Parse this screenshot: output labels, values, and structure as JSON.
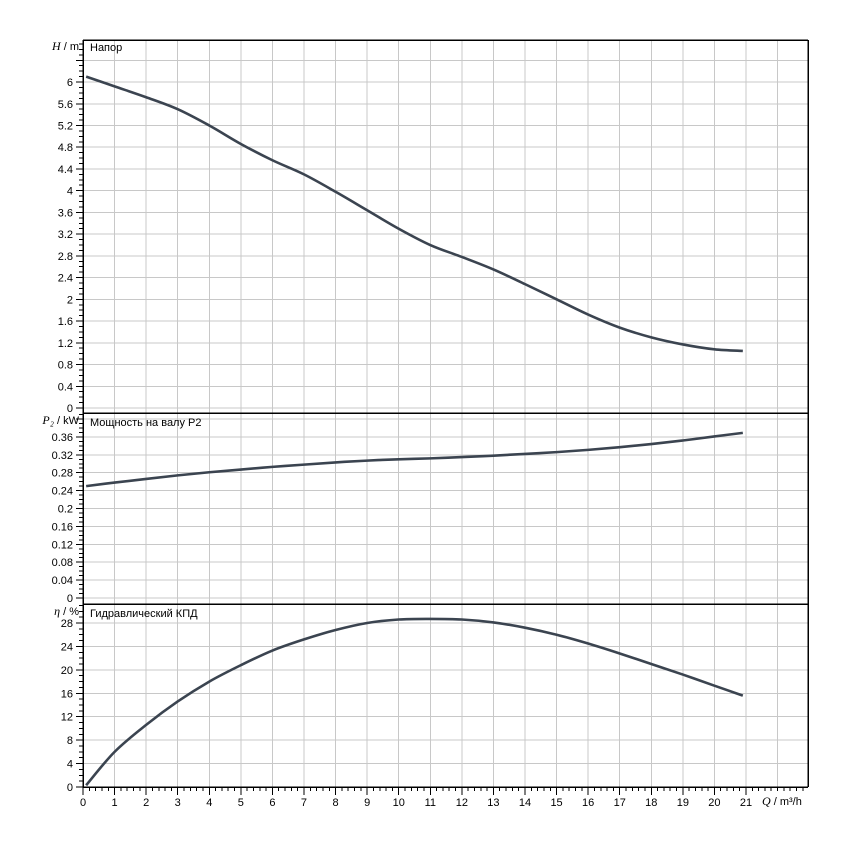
{
  "page": {
    "background": "#ffffff"
  },
  "colors": {
    "curve": "#3b4450",
    "grid": "#c8c8c8",
    "axis": "#000000",
    "text": "#000000"
  },
  "axis_labels": {
    "head": {
      "symbol": "H",
      "unit": " / m"
    },
    "power": {
      "symbol": "P₂",
      "unit": " / kW"
    },
    "eff": {
      "symbol": "η",
      "unit": " / %"
    },
    "flow": {
      "symbol": "Q",
      "unit": " / m³/h"
    }
  },
  "x_axis": {
    "tick_labels": [
      "0",
      "1",
      "2",
      "3",
      "4",
      "5",
      "6",
      "7",
      "8",
      "9",
      "10",
      "11",
      "12",
      "13",
      "14",
      "15",
      "16",
      "17",
      "18",
      "19",
      "20",
      "21"
    ],
    "major_step": 1,
    "minor_step": 0.2,
    "label": "Q / m³/h",
    "xlim": [
      0,
      22.96
    ]
  },
  "chart_data": [
    {
      "type": "line",
      "title": "Напор",
      "ylabel": "H / m",
      "xlabel": "Q / m³/h",
      "grid": true,
      "legend": "none",
      "xlim": [
        0,
        22.96
      ],
      "ylim": [
        0,
        6.77
      ],
      "y_major_step": 0.4,
      "y_minor_step": 0.1,
      "y_tick_labels": [
        "0",
        "0.4",
        "0.8",
        "1.2",
        "1.6",
        "2",
        "2.4",
        "2.8",
        "3.2",
        "3.6",
        "4",
        "4.4",
        "4.8",
        "5.2",
        "5.6",
        "6"
      ],
      "x": [
        0.1,
        1,
        2,
        3,
        4,
        5,
        6,
        7,
        8,
        9,
        10,
        11,
        12,
        13,
        14,
        15,
        16,
        17,
        18,
        19,
        20,
        20.9
      ],
      "y": [
        6.1,
        5.92,
        5.72,
        5.5,
        5.2,
        4.86,
        4.56,
        4.3,
        3.98,
        3.64,
        3.3,
        3.0,
        2.78,
        2.55,
        2.28,
        2.0,
        1.72,
        1.48,
        1.3,
        1.17,
        1.08,
        1.05
      ]
    },
    {
      "type": "line",
      "title": "Мощность на валу P2",
      "ylabel": "P₂ / kW",
      "xlabel": "Q / m³/h",
      "grid": true,
      "legend": "none",
      "xlim": [
        0,
        22.96
      ],
      "ylim": [
        0,
        0.413
      ],
      "y_major_step": 0.04,
      "y_minor_step": 0.01,
      "y_tick_labels": [
        "0",
        "0.04",
        "0.08",
        "0.12",
        "0.16",
        "0.2",
        "0.24",
        "0.28",
        "0.32",
        "0.36"
      ],
      "x": [
        0.1,
        1,
        2,
        3,
        4,
        5,
        6,
        7,
        8,
        9,
        10,
        11,
        12,
        13,
        14,
        15,
        16,
        17,
        18,
        19,
        20,
        20.9
      ],
      "y": [
        0.25,
        0.258,
        0.266,
        0.274,
        0.281,
        0.287,
        0.293,
        0.298,
        0.303,
        0.307,
        0.31,
        0.312,
        0.315,
        0.318,
        0.322,
        0.326,
        0.331,
        0.337,
        0.344,
        0.352,
        0.361,
        0.369
      ]
    },
    {
      "type": "line",
      "title": "Гидравлический КПД",
      "ylabel": "η / %",
      "xlabel": "Q / m³/h",
      "grid": true,
      "legend": "none",
      "xlim": [
        0,
        22.96
      ],
      "ylim": [
        0,
        31.2
      ],
      "y_major_step": 4,
      "y_minor_step": 1,
      "y_tick_labels": [
        "0",
        "4",
        "8",
        "12",
        "16",
        "20",
        "24",
        "28"
      ],
      "x": [
        0.1,
        1,
        2,
        3,
        4,
        5,
        6,
        7,
        8,
        9,
        10,
        11,
        12,
        13,
        14,
        15,
        16,
        17,
        18,
        19,
        20,
        20.9
      ],
      "y": [
        0.3,
        6.0,
        10.6,
        14.6,
        18.0,
        20.8,
        23.3,
        25.2,
        26.8,
        28.0,
        28.6,
        28.7,
        28.6,
        28.1,
        27.2,
        26.0,
        24.5,
        22.8,
        21.0,
        19.2,
        17.3,
        15.6
      ]
    }
  ]
}
